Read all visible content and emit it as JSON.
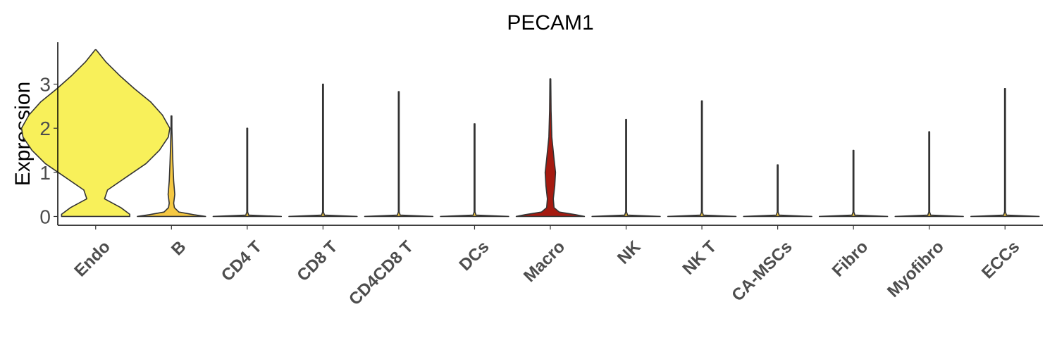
{
  "chart_data": {
    "type": "violin",
    "title": "PECAM1",
    "xlabel": "",
    "ylabel": "Expression",
    "ylim": [
      -0.2,
      3.95
    ],
    "yticks": [
      "0",
      "1",
      "2",
      "3"
    ],
    "grid": false,
    "legend": "none",
    "categories": [
      "Endo",
      "B",
      "CD4 T",
      "CD8 T",
      "CD4CD8 T",
      "DCs",
      "Macro",
      "NK",
      "NK T",
      "CA-MSCs",
      "Fibro",
      "Myofibro",
      "ECCs"
    ],
    "colors": [
      "#F8F05A",
      "#F5C842",
      "#F5C842",
      "#F5C842",
      "#F5C842",
      "#F5C842",
      "#A51A10",
      "#F5C842",
      "#F5C842",
      "#F5C842",
      "#F5C842",
      "#F5C842",
      "#F5C842"
    ],
    "max_values": [
      3.78,
      2.28,
      2.0,
      3.0,
      2.83,
      2.1,
      3.12,
      2.2,
      2.62,
      1.17,
      1.5,
      1.92,
      2.9
    ],
    "density_profiles": [
      [
        [
          0.0,
          0.46
        ],
        [
          0.05,
          0.46
        ],
        [
          0.2,
          0.34
        ],
        [
          0.4,
          0.12
        ],
        [
          0.6,
          0.16
        ],
        [
          0.9,
          0.42
        ],
        [
          1.2,
          0.68
        ],
        [
          1.5,
          0.86
        ],
        [
          1.8,
          0.98
        ],
        [
          2.0,
          1.0
        ],
        [
          2.3,
          0.9
        ],
        [
          2.6,
          0.74
        ],
        [
          2.9,
          0.52
        ],
        [
          3.2,
          0.32
        ],
        [
          3.5,
          0.14
        ],
        [
          3.78,
          0.0
        ]
      ],
      [
        [
          0.0,
          0.46
        ],
        [
          0.04,
          0.3
        ],
        [
          0.1,
          0.1
        ],
        [
          0.2,
          0.04
        ],
        [
          0.3,
          0.03
        ],
        [
          0.5,
          0.045
        ],
        [
          0.8,
          0.03
        ],
        [
          1.2,
          0.02
        ],
        [
          1.6,
          0.012
        ],
        [
          2.0,
          0.006
        ],
        [
          2.28,
          0.0
        ]
      ],
      [
        [
          0.0,
          0.46
        ],
        [
          0.03,
          0.02
        ],
        [
          0.1,
          0.004
        ],
        [
          2.0,
          0.003
        ]
      ],
      [
        [
          0.0,
          0.46
        ],
        [
          0.03,
          0.02
        ],
        [
          0.1,
          0.004
        ],
        [
          3.0,
          0.003
        ]
      ],
      [
        [
          0.0,
          0.46
        ],
        [
          0.03,
          0.02
        ],
        [
          0.1,
          0.004
        ],
        [
          2.83,
          0.003
        ]
      ],
      [
        [
          0.0,
          0.46
        ],
        [
          0.03,
          0.02
        ],
        [
          0.1,
          0.004
        ],
        [
          2.1,
          0.003
        ]
      ],
      [
        [
          0.0,
          0.46
        ],
        [
          0.04,
          0.34
        ],
        [
          0.1,
          0.12
        ],
        [
          0.2,
          0.05
        ],
        [
          0.4,
          0.04
        ],
        [
          0.7,
          0.06
        ],
        [
          1.0,
          0.07
        ],
        [
          1.3,
          0.05
        ],
        [
          1.8,
          0.02
        ],
        [
          2.4,
          0.01
        ],
        [
          3.12,
          0.0
        ]
      ],
      [
        [
          0.0,
          0.46
        ],
        [
          0.03,
          0.02
        ],
        [
          0.1,
          0.004
        ],
        [
          2.2,
          0.003
        ]
      ],
      [
        [
          0.0,
          0.46
        ],
        [
          0.03,
          0.02
        ],
        [
          0.1,
          0.004
        ],
        [
          2.62,
          0.003
        ]
      ],
      [
        [
          0.0,
          0.46
        ],
        [
          0.03,
          0.02
        ],
        [
          0.1,
          0.004
        ],
        [
          1.17,
          0.003
        ]
      ],
      [
        [
          0.0,
          0.46
        ],
        [
          0.03,
          0.02
        ],
        [
          0.1,
          0.004
        ],
        [
          1.5,
          0.003
        ]
      ],
      [
        [
          0.0,
          0.46
        ],
        [
          0.03,
          0.02
        ],
        [
          0.1,
          0.004
        ],
        [
          1.92,
          0.003
        ]
      ],
      [
        [
          0.0,
          0.46
        ],
        [
          0.03,
          0.02
        ],
        [
          0.1,
          0.004
        ],
        [
          2.9,
          0.003
        ]
      ]
    ]
  }
}
